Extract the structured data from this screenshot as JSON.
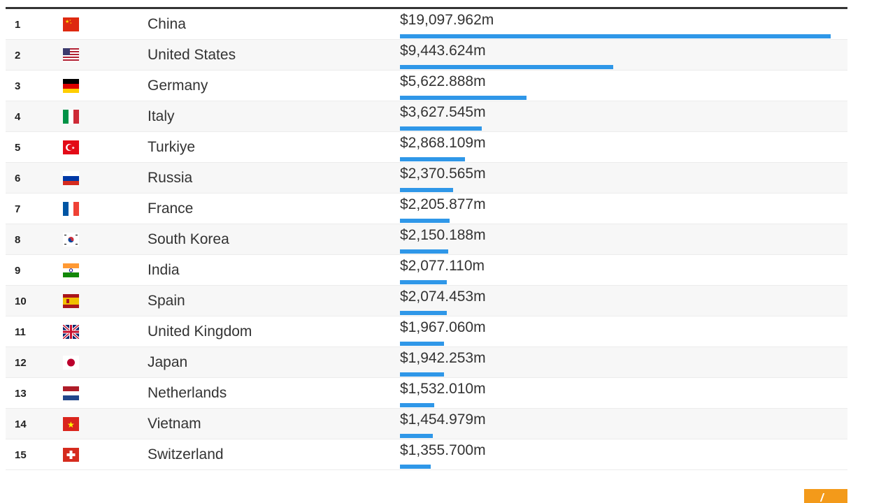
{
  "table": {
    "rows": [
      {
        "rank": "1",
        "flag": "china-flag-icon",
        "country": "China",
        "value_label": "$19,097.962m",
        "value": 19097.962
      },
      {
        "rank": "2",
        "flag": "united-states-flag-icon",
        "country": "United States",
        "value_label": "$9,443.624m",
        "value": 9443.624
      },
      {
        "rank": "3",
        "flag": "germany-flag-icon",
        "country": "Germany",
        "value_label": "$5,622.888m",
        "value": 5622.888
      },
      {
        "rank": "4",
        "flag": "italy-flag-icon",
        "country": "Italy",
        "value_label": "$3,627.545m",
        "value": 3627.545
      },
      {
        "rank": "5",
        "flag": "turkiye-flag-icon",
        "country": "Turkiye",
        "value_label": "$2,868.109m",
        "value": 2868.109
      },
      {
        "rank": "6",
        "flag": "russia-flag-icon",
        "country": "Russia",
        "value_label": "$2,370.565m",
        "value": 2370.565
      },
      {
        "rank": "7",
        "flag": "france-flag-icon",
        "country": "France",
        "value_label": "$2,205.877m",
        "value": 2205.877
      },
      {
        "rank": "8",
        "flag": "south-korea-flag-icon",
        "country": "South Korea",
        "value_label": "$2,150.188m",
        "value": 2150.188
      },
      {
        "rank": "9",
        "flag": "india-flag-icon",
        "country": "India",
        "value_label": "$2,077.110m",
        "value": 2077.11
      },
      {
        "rank": "10",
        "flag": "spain-flag-icon",
        "country": "Spain",
        "value_label": "$2,074.453m",
        "value": 2074.453
      },
      {
        "rank": "11",
        "flag": "united-kingdom-flag-icon",
        "country": "United Kingdom",
        "value_label": "$1,967.060m",
        "value": 1967.06
      },
      {
        "rank": "12",
        "flag": "japan-flag-icon",
        "country": "Japan",
        "value_label": "$1,942.253m",
        "value": 1942.253
      },
      {
        "rank": "13",
        "flag": "netherlands-flag-icon",
        "country": "Netherlands",
        "value_label": "$1,532.010m",
        "value": 1532.01
      },
      {
        "rank": "14",
        "flag": "vietnam-flag-icon",
        "country": "Vietnam",
        "value_label": "$1,454.979m",
        "value": 1454.979
      },
      {
        "rank": "15",
        "flag": "switzerland-flag-icon",
        "country": "Switzerland",
        "value_label": "$1,355.700m",
        "value": 1355.7
      }
    ]
  },
  "colors": {
    "bar": "#2f97e8",
    "header_rule": "#333333",
    "badge": "#f39a1a"
  },
  "corner_badge": {
    "icon": "share-icon"
  }
}
